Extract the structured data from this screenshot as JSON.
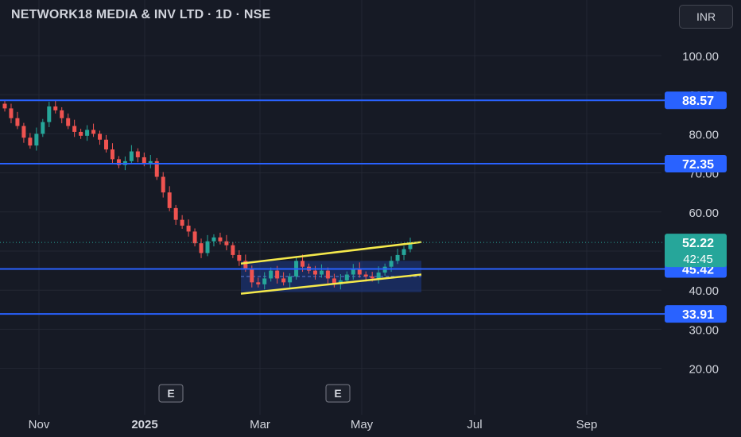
{
  "header": {
    "title": "NETWORK18 MEDIA & INV LTD · 1D · NSE",
    "currency": "INR"
  },
  "earnings_marker": "E",
  "colors": {
    "background": "#161a25",
    "grid": "#232733",
    "up": "#26a69a",
    "down": "#ef5350",
    "level": "#2962ff",
    "channel": "#f5e94b",
    "channel_fill": "#1e3a8a",
    "axis_text": "#d1d4dc"
  },
  "chart_data": {
    "type": "candlestick",
    "title": "NETWORK18 MEDIA & INV LTD · 1D · NSE",
    "currency": "INR",
    "x_ticks": [
      "Nov",
      "2025",
      "Mar",
      "May",
      "Jul",
      "Sep"
    ],
    "y_ticks": [
      100.0,
      90.0,
      80.0,
      70.0,
      60.0,
      50.0,
      40.0,
      30.0,
      20.0
    ],
    "ylim": [
      15,
      107
    ],
    "grid": true,
    "horizontal_levels": [
      88.57,
      72.35,
      45.42,
      33.91
    ],
    "last_price": 52.22,
    "countdown": "42:45",
    "earnings_markers": [
      "2025-01-15",
      "2025-04-15"
    ],
    "close_series": [
      86.5,
      84.0,
      82.0,
      79.0,
      77.0,
      80.0,
      83.0,
      87.0,
      86.0,
      84.0,
      82.0,
      80.5,
      79.5,
      81.0,
      80.0,
      78.5,
      76.0,
      73.5,
      72.0,
      73.0,
      75.5,
      74.0,
      72.5,
      73.0,
      69.0,
      65.0,
      61.0,
      58.0,
      56.5,
      55.0,
      52.0,
      49.5,
      52.5,
      53.5,
      52.5,
      51.5,
      49.0,
      47.5,
      45.5,
      42.0,
      41.5,
      43.0,
      45.0,
      43.0,
      42.0,
      43.5,
      47.5,
      46.0,
      45.0,
      44.0,
      45.0,
      43.0,
      41.5,
      42.5,
      44.0,
      45.5,
      44.0,
      43.5,
      43.0,
      44.5,
      46.0,
      47.5,
      49.0,
      50.5,
      52.22
    ],
    "channel": {
      "upper": [
        46.8,
        52.3
      ],
      "lower": [
        39.1,
        44.0
      ],
      "box_top": 47.5,
      "box_bottom": 39.5
    }
  }
}
